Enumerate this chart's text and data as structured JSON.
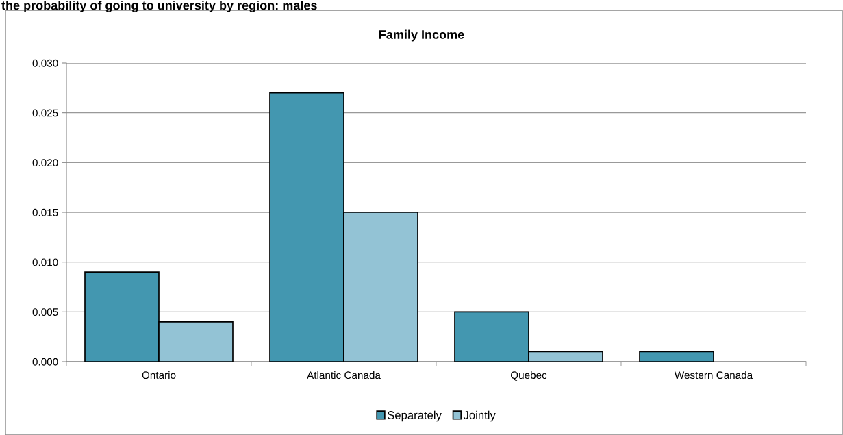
{
  "chart_data": {
    "type": "bar",
    "title": "the probability of going to university by region: males",
    "subtitle": "Family Income",
    "categories": [
      "Ontario",
      "Atlantic Canada",
      "Quebec",
      "Western Canada"
    ],
    "series": [
      {
        "name": "Separately",
        "color": "#4397b0",
        "values": [
          0.009,
          0.027,
          0.005,
          0.001
        ]
      },
      {
        "name": "Jointly",
        "color": "#93c3d5",
        "values": [
          0.004,
          0.015,
          0.001,
          null
        ]
      }
    ],
    "ylim": [
      0,
      0.03
    ],
    "yticks": [
      {
        "value": 0,
        "label": "0.000"
      },
      {
        "value": 0.005,
        "label": "0.005"
      },
      {
        "value": 0.01,
        "label": "0.010"
      },
      {
        "value": 0.015,
        "label": "0.015"
      },
      {
        "value": 0.02,
        "label": "0.020"
      },
      {
        "value": 0.025,
        "label": "0.025"
      },
      {
        "value": 0.03,
        "label": "0.030"
      }
    ],
    "grid": "y",
    "legend": "bottom"
  }
}
